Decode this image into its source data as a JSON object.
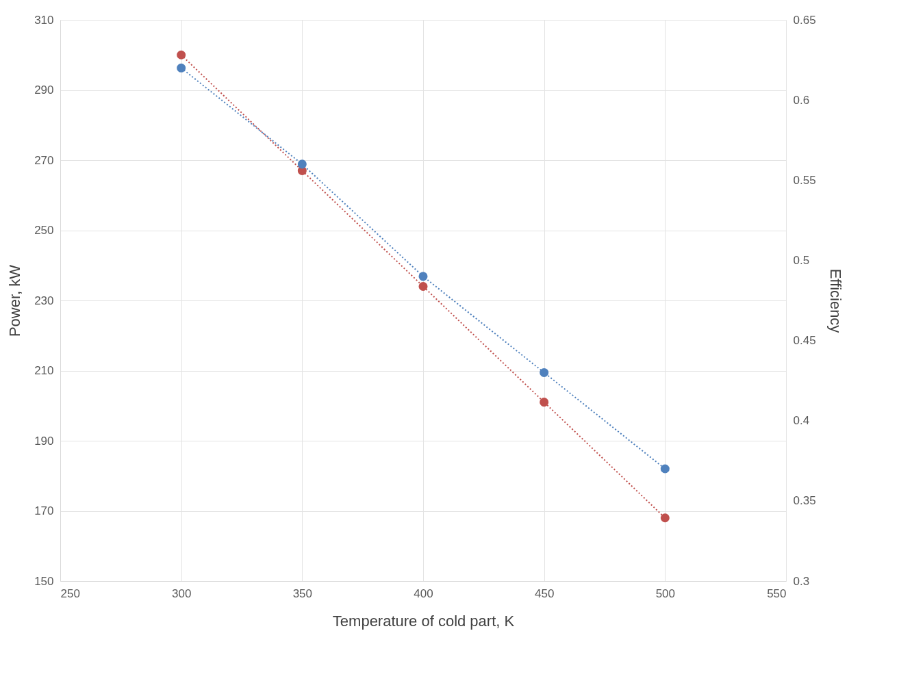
{
  "chart_data": {
    "type": "line",
    "xlabel": "Temperature of cold part, K",
    "ylabel": "Power, kW",
    "y2label": "Efficiency",
    "x": [
      300,
      350,
      400,
      450,
      500
    ],
    "series": [
      {
        "color": "#c0504d",
        "values": [
          300,
          267,
          234,
          201,
          168
        ]
      },
      {
        "color": "#4f81bd",
        "values": [
          0.62,
          0.56,
          0.49,
          0.43,
          0.37
        ],
        "axis": "y2"
      }
    ],
    "xlim": [
      250,
      550
    ],
    "xticks": [
      250,
      300,
      350,
      400,
      450,
      500,
      550
    ],
    "ylim": [
      150,
      310
    ],
    "yticks": [
      150,
      170,
      190,
      210,
      230,
      250,
      270,
      290,
      310
    ],
    "y2lim": [
      0.3,
      0.65
    ],
    "y2ticks": [
      0.3,
      0.35,
      0.4,
      0.45,
      0.5,
      0.55,
      0.6,
      0.65
    ],
    "grid": true,
    "marker": "circle",
    "line_style": "dotted"
  }
}
